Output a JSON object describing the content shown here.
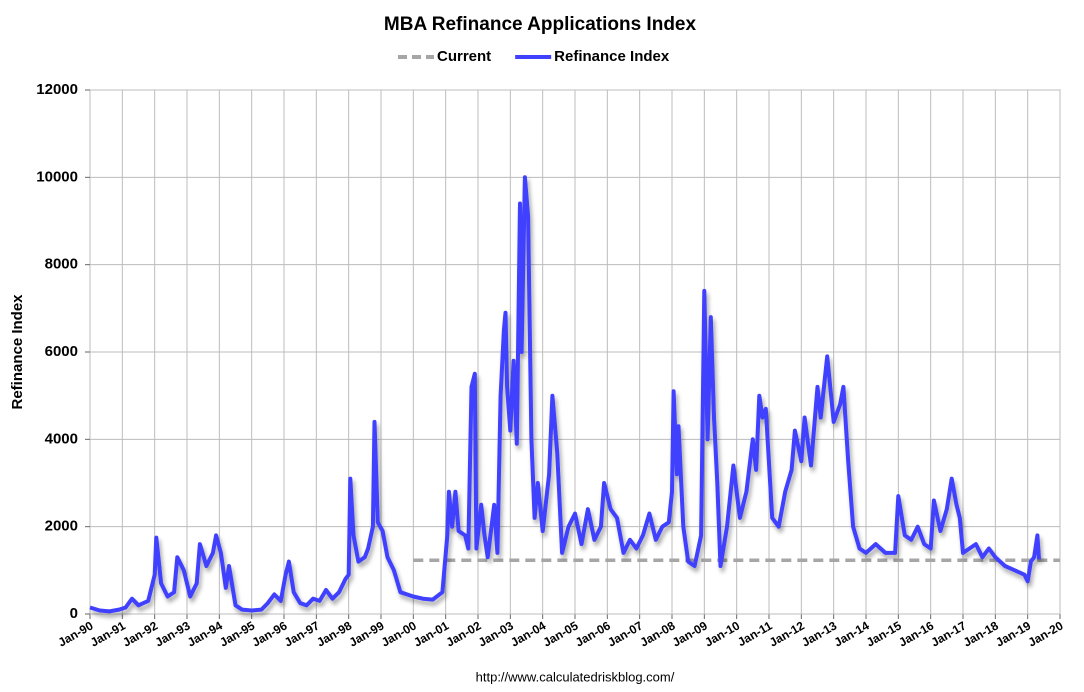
{
  "chart_data": {
    "type": "line",
    "title": "MBA Refinance Applications Index",
    "ylabel": "Refinance Index",
    "source": "http://www.calculatedriskblog.com/",
    "xlim": [
      1990,
      2020
    ],
    "xticks": [
      {
        "value": 1990,
        "label": "Jan-90"
      },
      {
        "value": 1991,
        "label": "Jan-91"
      },
      {
        "value": 1992,
        "label": "Jan-92"
      },
      {
        "value": 1993,
        "label": "Jan-93"
      },
      {
        "value": 1994,
        "label": "Jan-94"
      },
      {
        "value": 1995,
        "label": "Jan-95"
      },
      {
        "value": 1996,
        "label": "Jan-96"
      },
      {
        "value": 1997,
        "label": "Jan-97"
      },
      {
        "value": 1998,
        "label": "Jan-98"
      },
      {
        "value": 1999,
        "label": "Jan-99"
      },
      {
        "value": 2000,
        "label": "Jan-00"
      },
      {
        "value": 2001,
        "label": "Jan-01"
      },
      {
        "value": 2002,
        "label": "Jan-02"
      },
      {
        "value": 2003,
        "label": "Jan-03"
      },
      {
        "value": 2004,
        "label": "Jan-04"
      },
      {
        "value": 2005,
        "label": "Jan-05"
      },
      {
        "value": 2006,
        "label": "Jan-06"
      },
      {
        "value": 2007,
        "label": "Jan-07"
      },
      {
        "value": 2008,
        "label": "Jan-08"
      },
      {
        "value": 2009,
        "label": "Jan-09"
      },
      {
        "value": 2010,
        "label": "Jan-10"
      },
      {
        "value": 2011,
        "label": "Jan-11"
      },
      {
        "value": 2012,
        "label": "Jan-12"
      },
      {
        "value": 2013,
        "label": "Jan-13"
      },
      {
        "value": 2014,
        "label": "Jan-14"
      },
      {
        "value": 2015,
        "label": "Jan-15"
      },
      {
        "value": 2016,
        "label": "Jan-16"
      },
      {
        "value": 2017,
        "label": "Jan-17"
      },
      {
        "value": 2018,
        "label": "Jan-18"
      },
      {
        "value": 2019,
        "label": "Jan-19"
      },
      {
        "value": 2020,
        "label": "Jan-20"
      }
    ],
    "ylim": [
      0,
      12000
    ],
    "yticks": [
      0,
      2000,
      4000,
      6000,
      8000,
      10000,
      12000
    ],
    "grid": true,
    "legend": "top",
    "series": [
      {
        "name": "Current",
        "color": "#a6a6a6",
        "dashed": true,
        "x": [
          2000,
          2020
        ],
        "values": [
          1230,
          1230
        ]
      },
      {
        "name": "Refinance Index",
        "color": "#4040ff",
        "x": [
          1990.0,
          1990.3,
          1990.6,
          1990.9,
          1991.1,
          1991.3,
          1991.5,
          1991.8,
          1992.0,
          1992.05,
          1992.2,
          1992.4,
          1992.6,
          1992.7,
          1992.9,
          1993.1,
          1993.3,
          1993.4,
          1993.6,
          1993.8,
          1993.9,
          1994.05,
          1994.2,
          1994.3,
          1994.5,
          1994.7,
          1995.0,
          1995.3,
          1995.5,
          1995.7,
          1995.9,
          1996.05,
          1996.15,
          1996.3,
          1996.5,
          1996.7,
          1996.9,
          1997.1,
          1997.3,
          1997.5,
          1997.7,
          1997.9,
          1998.0,
          1998.05,
          1998.15,
          1998.3,
          1998.5,
          1998.6,
          1998.75,
          1998.8,
          1998.9,
          1999.05,
          1999.2,
          1999.4,
          1999.6,
          1999.8,
          2000.0,
          2000.3,
          2000.6,
          2000.9,
          2001.05,
          2001.1,
          2001.2,
          2001.3,
          2001.4,
          2001.6,
          2001.7,
          2001.8,
          2001.9,
          2001.95,
          2002.1,
          2002.2,
          2002.3,
          2002.5,
          2002.6,
          2002.7,
          2002.8,
          2002.85,
          2002.9,
          2003.0,
          2003.1,
          2003.2,
          2003.3,
          2003.35,
          2003.45,
          2003.55,
          2003.65,
          2003.75,
          2003.85,
          2004.0,
          2004.2,
          2004.3,
          2004.45,
          2004.6,
          2004.8,
          2005.0,
          2005.2,
          2005.4,
          2005.6,
          2005.8,
          2005.9,
          2006.1,
          2006.3,
          2006.5,
          2006.7,
          2006.9,
          2007.1,
          2007.3,
          2007.5,
          2007.7,
          2007.9,
          2008.0,
          2008.05,
          2008.15,
          2008.2,
          2008.35,
          2008.5,
          2008.7,
          2008.9,
          2009.0,
          2009.1,
          2009.2,
          2009.3,
          2009.4,
          2009.5,
          2009.7,
          2009.9,
          2010.1,
          2010.3,
          2010.5,
          2010.6,
          2010.7,
          2010.8,
          2010.9,
          2011.1,
          2011.3,
          2011.5,
          2011.7,
          2011.8,
          2012.0,
          2012.1,
          2012.3,
          2012.5,
          2012.6,
          2012.8,
          2013.0,
          2013.2,
          2013.3,
          2013.45,
          2013.6,
          2013.8,
          2014.0,
          2014.3,
          2014.6,
          2014.9,
          2015.0,
          2015.2,
          2015.4,
          2015.6,
          2015.8,
          2016.0,
          2016.1,
          2016.3,
          2016.5,
          2016.65,
          2016.8,
          2016.9,
          2017.0,
          2017.2,
          2017.4,
          2017.6,
          2017.8,
          2018.0,
          2018.3,
          2018.6,
          2018.9,
          2019.0,
          2019.1,
          2019.2,
          2019.3,
          2019.35
        ],
        "values": [
          150,
          80,
          60,
          100,
          150,
          350,
          200,
          300,
          900,
          1750,
          700,
          400,
          500,
          1300,
          1000,
          400,
          700,
          1600,
          1100,
          1400,
          1800,
          1400,
          600,
          1100,
          200,
          100,
          80,
          100,
          250,
          450,
          300,
          900,
          1200,
          500,
          250,
          200,
          350,
          300,
          550,
          350,
          500,
          800,
          900,
          3100,
          1800,
          1200,
          1300,
          1500,
          2000,
          4400,
          2100,
          1900,
          1300,
          1000,
          500,
          450,
          400,
          350,
          330,
          500,
          1800,
          2800,
          2000,
          2800,
          1900,
          1800,
          1500,
          5200,
          5500,
          1500,
          2500,
          1800,
          1300,
          2500,
          1400,
          5000,
          6500,
          6900,
          5200,
          4200,
          5800,
          3900,
          9400,
          6000,
          10000,
          9100,
          4000,
          2200,
          3000,
          1900,
          3200,
          5000,
          3700,
          1400,
          2000,
          2300,
          1600,
          2400,
          1700,
          2000,
          3000,
          2400,
          2200,
          1400,
          1700,
          1500,
          1800,
          2300,
          1700,
          2000,
          2100,
          2800,
          5100,
          3200,
          4300,
          2000,
          1200,
          1100,
          1800,
          7400,
          4000,
          6800,
          4500,
          3000,
          1100,
          2000,
          3400,
          2200,
          2800,
          4000,
          3300,
          5000,
          4500,
          4700,
          2200,
          2000,
          2800,
          3300,
          4200,
          3500,
          4500,
          3400,
          5200,
          4500,
          5900,
          4400,
          4800,
          5200,
          3500,
          2000,
          1500,
          1400,
          1600,
          1400,
          1400,
          2700,
          1800,
          1700,
          2000,
          1600,
          1500,
          2600,
          1900,
          2400,
          3100,
          2500,
          2200,
          1400,
          1500,
          1600,
          1300,
          1500,
          1300,
          1100,
          1000,
          900,
          750,
          1200,
          1300,
          1800,
          1250
        ]
      }
    ]
  }
}
